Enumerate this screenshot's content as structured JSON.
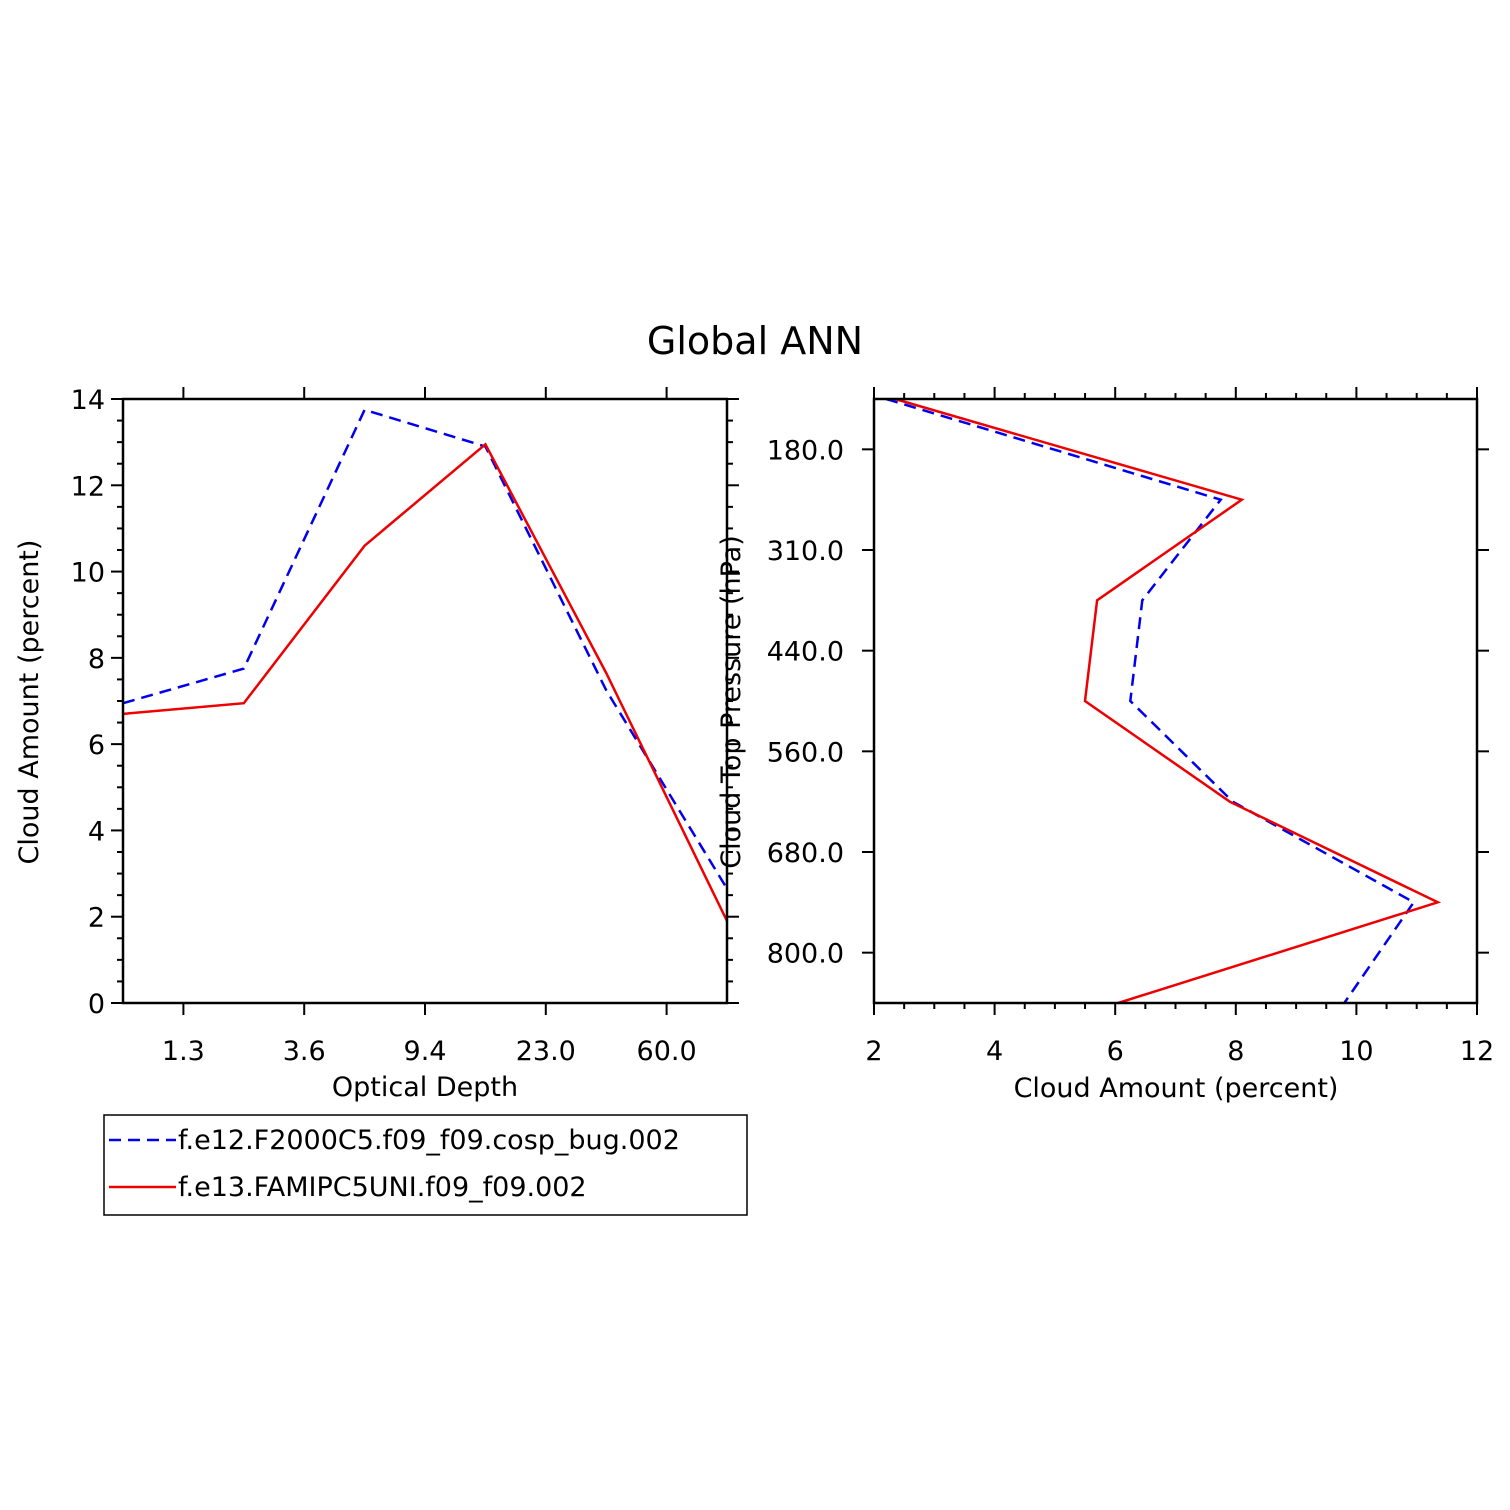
{
  "title": "Global ANN",
  "colors": {
    "series_a": "#0000ee",
    "series_b": "#ee0000",
    "axes": "#000000"
  },
  "legend": {
    "placement": "below-left",
    "entries": [
      {
        "label": "f.e12.F2000C5.f09_f09.cosp_bug.002",
        "color": "#0000ee",
        "style": "dashed"
      },
      {
        "label": "f.e13.FAMIPC5UNI.f09_f09.002",
        "color": "#ee0000",
        "style": "solid"
      }
    ]
  },
  "chart_data": [
    {
      "type": "line",
      "xlabel": "Optical Depth",
      "ylabel": "Cloud Amount (percent)",
      "x_categories": [
        "",
        "1.3",
        "",
        "3.6",
        "",
        "9.4",
        "",
        "23.0",
        "",
        "60.0",
        ""
      ],
      "x_tick_labels": [
        "1.3",
        "3.6",
        "9.4",
        "23.0",
        "60.0"
      ],
      "ylim": [
        0,
        14
      ],
      "y_ticks": [
        0,
        2,
        4,
        6,
        8,
        10,
        12,
        14
      ],
      "series": [
        {
          "name": "f.e12.F2000C5.f09_f09.cosp_bug.002",
          "style": "dashed",
          "color": "#0000ee",
          "x_index": [
            0,
            2,
            4,
            6,
            8,
            10
          ],
          "values": [
            6.95,
            7.75,
            13.75,
            12.9,
            7.25,
            2.65
          ]
        },
        {
          "name": "f.e13.FAMIPC5UNI.f09_f09.002",
          "style": "solid",
          "color": "#ee0000",
          "x_index": [
            0,
            2,
            4,
            6,
            8,
            10
          ],
          "values": [
            6.7,
            6.95,
            10.6,
            12.95,
            7.65,
            1.9
          ]
        }
      ]
    },
    {
      "type": "line",
      "xlabel": "Cloud Amount (percent)",
      "ylabel": "Cloud Top Pressure (hPa)",
      "xlim": [
        2,
        12
      ],
      "x_ticks": [
        2,
        4,
        6,
        8,
        10,
        12
      ],
      "y_tick_labels": [
        "180.0",
        "310.0",
        "440.0",
        "560.0",
        "680.0",
        "800.0"
      ],
      "y_levels_index": [
        0,
        2,
        4,
        6,
        8,
        10,
        12
      ],
      "series": [
        {
          "name": "f.e12.F2000C5.f09_f09.cosp_bug.002",
          "style": "dashed",
          "color": "#0000ee",
          "y_index": [
            0,
            2,
            4,
            6,
            8,
            10,
            12
          ],
          "values": [
            2.2,
            7.75,
            6.45,
            6.25,
            7.95,
            10.95,
            9.8
          ]
        },
        {
          "name": "f.e13.FAMIPC5UNI.f09_f09.002",
          "style": "solid",
          "color": "#ee0000",
          "y_index": [
            0,
            2,
            4,
            6,
            8,
            10,
            12
          ],
          "values": [
            2.35,
            8.1,
            5.7,
            5.5,
            7.9,
            11.35,
            6.05
          ]
        }
      ]
    }
  ]
}
